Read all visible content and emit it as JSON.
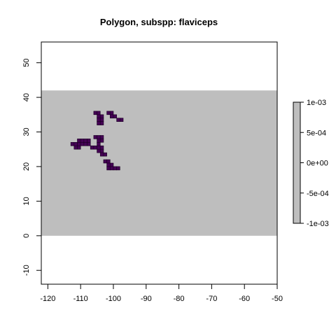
{
  "chart_data": {
    "type": "heatmap",
    "title": "Polygon, subspp: flaviceps",
    "xlabel": "",
    "ylabel": "",
    "xlim": [
      -122,
      -50
    ],
    "ylim": [
      -14,
      56
    ],
    "x_ticks": [
      -120,
      -110,
      -100,
      -90,
      -80,
      -70,
      -60,
      -50
    ],
    "y_ticks": [
      -10,
      0,
      10,
      20,
      30,
      40,
      50
    ],
    "x_tick_labels": [
      "-120",
      "-110",
      "-100",
      "-90",
      "-80",
      "-70",
      "-60",
      "-50"
    ],
    "y_tick_labels": [
      "-10",
      "0",
      "10",
      "20",
      "30",
      "40",
      "50"
    ],
    "raster_extent": {
      "xmin": -122,
      "xmax": -50,
      "ymin": 0,
      "ymax": 42
    },
    "cell_size": 1,
    "background_value": 0,
    "presence_value": 1,
    "presence_cells": [
      [
        -106,
        35
      ],
      [
        -105,
        35
      ],
      [
        -102,
        35
      ],
      [
        -101,
        35
      ],
      [
        -105,
        34
      ],
      [
        -104,
        34
      ],
      [
        -101,
        34
      ],
      [
        -100,
        34
      ],
      [
        -105,
        33
      ],
      [
        -104,
        33
      ],
      [
        -99,
        33
      ],
      [
        -98,
        33
      ],
      [
        -105,
        32
      ],
      [
        -104,
        32
      ],
      [
        -106,
        28
      ],
      [
        -105,
        28
      ],
      [
        -104,
        28
      ],
      [
        -111,
        27
      ],
      [
        -110,
        27
      ],
      [
        -109,
        27
      ],
      [
        -108,
        27
      ],
      [
        -105,
        27
      ],
      [
        -104,
        27
      ],
      [
        -113,
        26
      ],
      [
        -112,
        26
      ],
      [
        -111,
        26
      ],
      [
        -110,
        26
      ],
      [
        -109,
        26
      ],
      [
        -108,
        26
      ],
      [
        -105,
        26
      ],
      [
        -112,
        25
      ],
      [
        -111,
        25
      ],
      [
        -107,
        25
      ],
      [
        -106,
        25
      ],
      [
        -105,
        25
      ],
      [
        -104,
        25
      ],
      [
        -105,
        24
      ],
      [
        -104,
        24
      ],
      [
        -104,
        23
      ],
      [
        -103,
        23
      ],
      [
        -103,
        21
      ],
      [
        -102,
        21
      ],
      [
        -102,
        20
      ],
      [
        -101,
        20
      ],
      [
        -102,
        19
      ],
      [
        -101,
        19
      ],
      [
        -100,
        19
      ],
      [
        -99,
        19
      ]
    ],
    "colors": {
      "background_cell": "#bebebe",
      "presence_cell": "#440154",
      "cell_border": "#1a0022"
    },
    "legend": {
      "position": "right",
      "range": [
        -0.001,
        0.001
      ],
      "ticks": [
        "1e-03",
        "5e-04",
        "0e+00",
        "-5e-04",
        "-1e-03"
      ],
      "color": "#bebebe"
    },
    "grid": false
  }
}
